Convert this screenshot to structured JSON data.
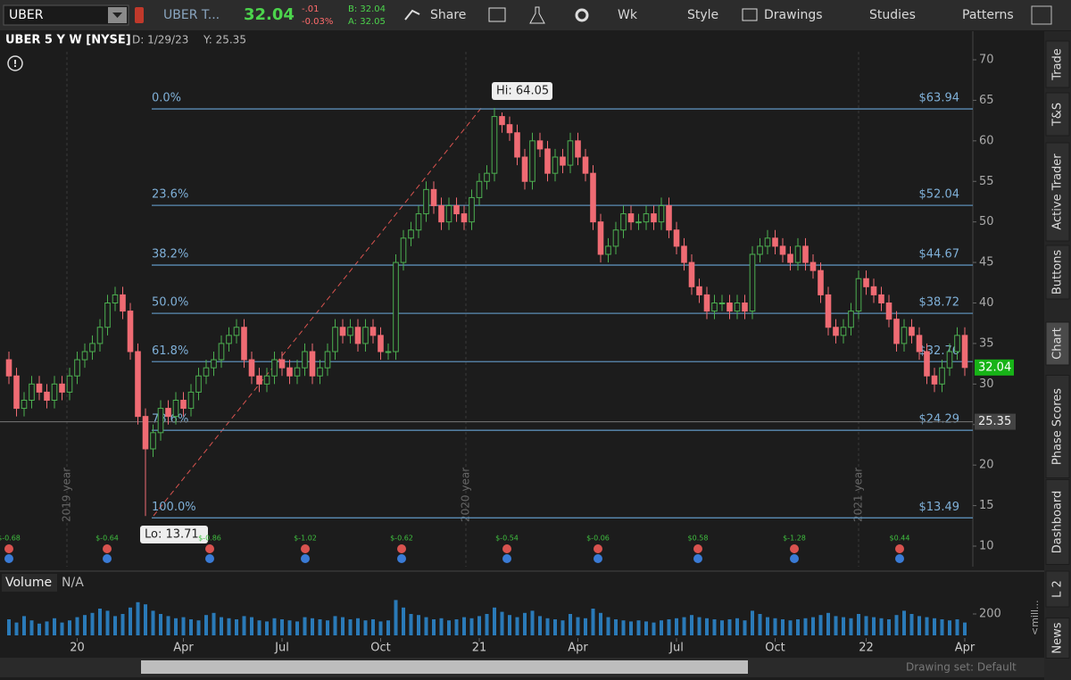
{
  "toolbar": {
    "symbol": "UBER",
    "description": "UBER T...",
    "last": 32.04,
    "change": "-.01",
    "change_pct": "-0.03%",
    "bid": "B: 32.04",
    "ask": "A: 32.05",
    "share": "Share",
    "period": "Wk",
    "style": "Style",
    "drawings": "Drawings",
    "studies": "Studies",
    "patterns": "Patterns"
  },
  "chart": {
    "header": {
      "title": "UBER 5 Y W [NYSE]",
      "date": "D: 1/29/23",
      "y": "Y: 25.35"
    },
    "ylim": [
      10,
      70
    ],
    "yticks": [
      10,
      15,
      20,
      25,
      30,
      35,
      40,
      45,
      50,
      55,
      60,
      65,
      70
    ],
    "xticks": [
      {
        "value": 9,
        "label": "20"
      },
      {
        "value": 23,
        "label": "Apr"
      },
      {
        "value": 36,
        "label": "Jul"
      },
      {
        "value": 49,
        "label": "Oct"
      },
      {
        "value": 62,
        "label": "21"
      },
      {
        "value": 75,
        "label": "Apr"
      },
      {
        "value": 88,
        "label": "Jul"
      },
      {
        "value": 101,
        "label": "Oct"
      },
      {
        "value": 113,
        "label": "22"
      },
      {
        "value": 126,
        "label": "Apr"
      }
    ],
    "year_labels": [
      "2019 year",
      "2020 year",
      "2021 year"
    ],
    "candles": {
      "open": [
        33,
        31,
        27,
        28,
        30,
        29,
        28,
        30,
        29,
        31,
        33,
        34,
        35,
        37,
        40,
        41,
        39,
        34,
        26,
        22,
        24,
        27,
        26,
        28,
        27,
        29,
        31,
        32,
        33,
        35,
        36,
        37,
        33,
        31,
        30,
        31,
        33,
        32,
        31,
        32,
        34,
        31,
        32,
        34,
        37,
        36,
        37,
        35,
        37,
        36,
        34,
        34,
        45,
        48,
        49,
        51,
        54,
        52,
        50,
        52,
        51,
        50,
        53,
        55,
        56,
        63,
        62,
        61,
        58,
        55,
        60,
        59,
        56,
        58,
        57,
        60,
        58,
        56,
        50,
        46,
        47,
        49,
        51,
        50,
        50,
        51,
        50,
        52,
        49,
        47,
        45,
        42,
        41,
        39,
        40,
        40,
        39,
        40,
        39,
        46,
        47,
        48,
        47,
        46,
        45,
        47,
        45,
        44,
        41,
        37,
        36,
        37,
        39,
        43,
        42,
        41,
        40,
        38,
        35,
        37,
        36,
        34,
        31,
        30,
        32,
        34,
        36
      ],
      "high": [
        34,
        32,
        29,
        31,
        31,
        30,
        31,
        31,
        32,
        34,
        35,
        36,
        38,
        41,
        42,
        42,
        40,
        35,
        27,
        25,
        28,
        28,
        29,
        29,
        30,
        32,
        33,
        34,
        36,
        37,
        38,
        38,
        34,
        32,
        32,
        34,
        34,
        33,
        33,
        35,
        35,
        33,
        35,
        38,
        38,
        38,
        38,
        38,
        38,
        37,
        35,
        46,
        49,
        50,
        52,
        55,
        55,
        53,
        53,
        53,
        52,
        54,
        56,
        57,
        64.05,
        63.5,
        63,
        62,
        59,
        61,
        61,
        60,
        59,
        59,
        61,
        61,
        59,
        57,
        51,
        48,
        50,
        52,
        52,
        51,
        52,
        52,
        53,
        53,
        50,
        48,
        46,
        43,
        42,
        41,
        41,
        41,
        41,
        41,
        47,
        48,
        49,
        49,
        48,
        47,
        48,
        48,
        46,
        45,
        42,
        38,
        38,
        40,
        44,
        44,
        43,
        42,
        41,
        39,
        38,
        38,
        37,
        35,
        32,
        33,
        35,
        37,
        37
      ],
      "low": [
        30,
        26,
        26,
        27,
        28,
        27,
        27,
        28,
        28,
        30,
        32,
        33,
        34,
        36,
        39,
        38,
        33,
        25,
        13.71,
        21,
        23,
        25,
        25,
        26,
        26,
        28,
        30,
        31,
        32,
        34,
        35,
        32,
        30,
        29,
        29,
        30,
        31,
        30,
        30,
        31,
        30,
        30,
        31,
        33,
        35,
        35,
        34,
        34,
        35,
        33,
        33,
        33,
        44,
        47,
        48,
        50,
        51,
        49,
        49,
        50,
        49,
        49,
        52,
        54,
        55,
        61,
        60,
        57,
        54,
        54,
        58,
        55,
        55,
        56,
        56,
        57,
        55,
        49,
        45,
        45,
        46,
        48,
        49,
        49,
        49,
        49,
        49,
        48,
        46,
        44,
        41,
        40,
        38,
        38,
        39,
        38,
        38,
        38,
        38,
        45,
        46,
        46,
        45,
        44,
        44,
        44,
        43,
        40,
        36,
        35,
        35,
        36,
        38,
        41,
        40,
        39,
        37,
        34,
        34,
        35,
        33,
        30,
        29,
        29,
        31,
        33,
        31
      ],
      "close": [
        31,
        27,
        28,
        30,
        29,
        28,
        30,
        29,
        31,
        33,
        34,
        35,
        37,
        40,
        41,
        39,
        34,
        26,
        22,
        24,
        27,
        26,
        28,
        27,
        29,
        31,
        32,
        33,
        35,
        36,
        37,
        33,
        31,
        30,
        31,
        33,
        32,
        31,
        32,
        34,
        31,
        32,
        34,
        37,
        36,
        37,
        35,
        37,
        36,
        34,
        34,
        45,
        48,
        49,
        51,
        54,
        52,
        50,
        52,
        51,
        50,
        53,
        55,
        56,
        63,
        62,
        61,
        58,
        55,
        60,
        59,
        56,
        58,
        57,
        60,
        58,
        56,
        50,
        46,
        47,
        49,
        51,
        50,
        50,
        51,
        50,
        52,
        49,
        47,
        45,
        42,
        41,
        39,
        40,
        40,
        39,
        40,
        39,
        46,
        47,
        48,
        47,
        46,
        45,
        47,
        45,
        44,
        41,
        37,
        36,
        37,
        39,
        43,
        42,
        41,
        40,
        38,
        35,
        37,
        36,
        34,
        31,
        30,
        32,
        34,
        36,
        32.04
      ]
    },
    "fib": [
      {
        "label": "0.0%",
        "price": {
          "value": 63.94,
          "label": "$63.94"
        }
      },
      {
        "label": "23.6%",
        "price": {
          "value": 52.04,
          "label": "$52.04"
        }
      },
      {
        "label": "38.2%",
        "price": {
          "value": 44.67,
          "label": "$44.67"
        }
      },
      {
        "label": "50.0%",
        "price": {
          "value": 38.72,
          "label": "$38.72"
        }
      },
      {
        "label": "61.8%",
        "price": {
          "value": 32.76,
          "label": "$32.76"
        }
      },
      {
        "label": "78.6%",
        "price": {
          "value": 24.29,
          "label": "$24.29"
        }
      },
      {
        "label": "100.0%",
        "price": {
          "value": 13.49,
          "label": "$13.49"
        }
      }
    ],
    "hi_label": "Hi: 64.05",
    "lo_label": "Lo: 13.71",
    "last_price": 32.04,
    "cursor_price": 25.35,
    "earnings": [
      "$-0.68",
      "$-0.64",
      "$-0.86",
      "$-1.02",
      "$-0.62",
      "$-0.54",
      "$-0.06",
      "$0.58",
      "$-1.28",
      "$0.44"
    ],
    "volume": {
      "title": "Volume",
      "status": "N/A",
      "unit": "<mill...",
      "ylim": [
        0,
        350
      ],
      "yticks": [
        200
      ],
      "values": [
        150,
        120,
        180,
        140,
        110,
        130,
        160,
        120,
        140,
        170,
        190,
        210,
        250,
        230,
        180,
        200,
        260,
        310,
        290,
        230,
        200,
        180,
        160,
        170,
        150,
        140,
        190,
        210,
        170,
        160,
        150,
        180,
        170,
        140,
        130,
        160,
        150,
        140,
        130,
        170,
        160,
        150,
        140,
        180,
        170,
        150,
        160,
        140,
        150,
        130,
        140,
        330,
        260,
        200,
        190,
        170,
        150,
        160,
        140,
        150,
        170,
        160,
        180,
        200,
        260,
        220,
        190,
        170,
        210,
        230,
        180,
        160,
        150,
        140,
        200,
        170,
        160,
        250,
        210,
        170,
        150,
        140,
        130,
        140,
        130,
        120,
        140,
        150,
        160,
        170,
        190,
        170,
        160,
        150,
        140,
        150,
        160,
        140,
        230,
        200,
        170,
        160,
        150,
        140,
        150,
        160,
        170,
        190,
        210,
        180,
        170,
        160,
        200,
        180,
        170,
        160,
        150,
        190,
        230,
        200,
        180,
        170,
        160,
        150,
        140,
        150,
        120
      ]
    }
  },
  "sidebar": {
    "tabs": [
      "Trade",
      "T&S",
      "Active Trader",
      "Buttons",
      "Chart",
      "Phase Scores",
      "Dashboard",
      "L 2",
      "News"
    ]
  },
  "footer": {
    "drawing_set": "Drawing set: Default"
  }
}
